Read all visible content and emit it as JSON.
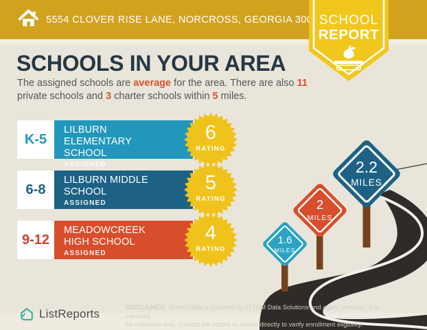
{
  "header": {
    "address": "5554 CLOVER RISE LANE, NORCROSS, GEORGIA 30093"
  },
  "badge": {
    "line1": "SCHOOL",
    "line2": "REPORT"
  },
  "main": {
    "title": "SCHOOLS IN YOUR AREA",
    "subtitle": {
      "s0": "The assigned schools are ",
      "e0": "average",
      "s1": " for the area. There are also ",
      "e1": "11",
      "s2": "private schools and ",
      "e2": "3",
      "s3": " charter schools within ",
      "e3": "5",
      "s4": " miles."
    }
  },
  "rating_label": "RATING",
  "schools": [
    {
      "grades": "K-5",
      "name": "LILBURN ELEMENTARY SCHOOL",
      "status": "ASSIGNED",
      "rating": "6",
      "color": "#2397bb"
    },
    {
      "grades": "6-8",
      "name": "LILBURN MIDDLE SCHOOL",
      "status": "ASSIGNED",
      "rating": "5",
      "color": "#1d6285"
    },
    {
      "grades": "9-12",
      "name": "MEADOWCREEK HIGH SCHOOL",
      "status": "ASSIGNED",
      "rating": "4",
      "color": "#d84e2c"
    }
  ],
  "signs": [
    {
      "distance": "1.6",
      "unit": "MILES",
      "color": "#2aa3c4"
    },
    {
      "distance": "2",
      "unit": "MILES",
      "color": "#d84e2c"
    },
    {
      "distance": "2.2",
      "unit": "MILES",
      "color": "#1d6285"
    }
  ],
  "footer": {
    "logo_text": "ListReports",
    "disclaimer_label": "DISCLAIMER:",
    "disclaimer_rest1": " School data is provided by ATTOM Data Solutions and agent selection. It is intended",
    "disclaimer_line2": "for reference only. Contact the school or district directly to verify enrollment eligibility."
  },
  "colors": {
    "header_gold": "#d1a21d",
    "badge_yellow": "#f2c71d",
    "burst_yellow": "#f0c31c",
    "background_cream": "#e9e5da",
    "title_navy": "#263744",
    "accent_red": "#d8532b",
    "teal": "#2397bb",
    "steel_blue": "#1d6285",
    "orange": "#d84e2c",
    "road_dark": "#2e2b28",
    "post_brown": "#74431d",
    "logo_teal": "#35ada0"
  }
}
